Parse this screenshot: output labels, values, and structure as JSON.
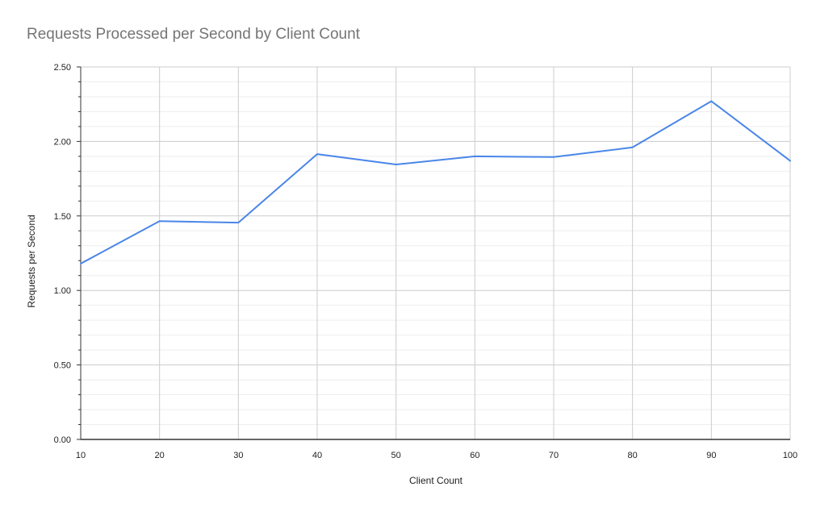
{
  "chart_data": {
    "type": "line",
    "title": "Requests Processed per Second by Client Count",
    "xlabel": "Client Count",
    "ylabel": "Requests per Second",
    "x": [
      10,
      20,
      30,
      40,
      50,
      60,
      70,
      80,
      90,
      100
    ],
    "x_tick_labels": [
      "10",
      "20",
      "30",
      "40",
      "50",
      "60",
      "70",
      "80",
      "90",
      "100"
    ],
    "y_tick_labels": [
      "0.00",
      "0.50",
      "1.00",
      "1.50",
      "2.00",
      "2.50"
    ],
    "y_ticks": [
      0,
      0.5,
      1.0,
      1.5,
      2.0,
      2.5
    ],
    "xlim": [
      10,
      100
    ],
    "ylim": [
      0,
      2.5
    ],
    "series": [
      {
        "values": [
          1.18,
          1.465,
          1.455,
          1.915,
          1.845,
          1.9,
          1.895,
          1.96,
          2.27,
          1.87
        ],
        "color": "#4a86e8"
      }
    ],
    "grid": true,
    "legend": "none"
  }
}
